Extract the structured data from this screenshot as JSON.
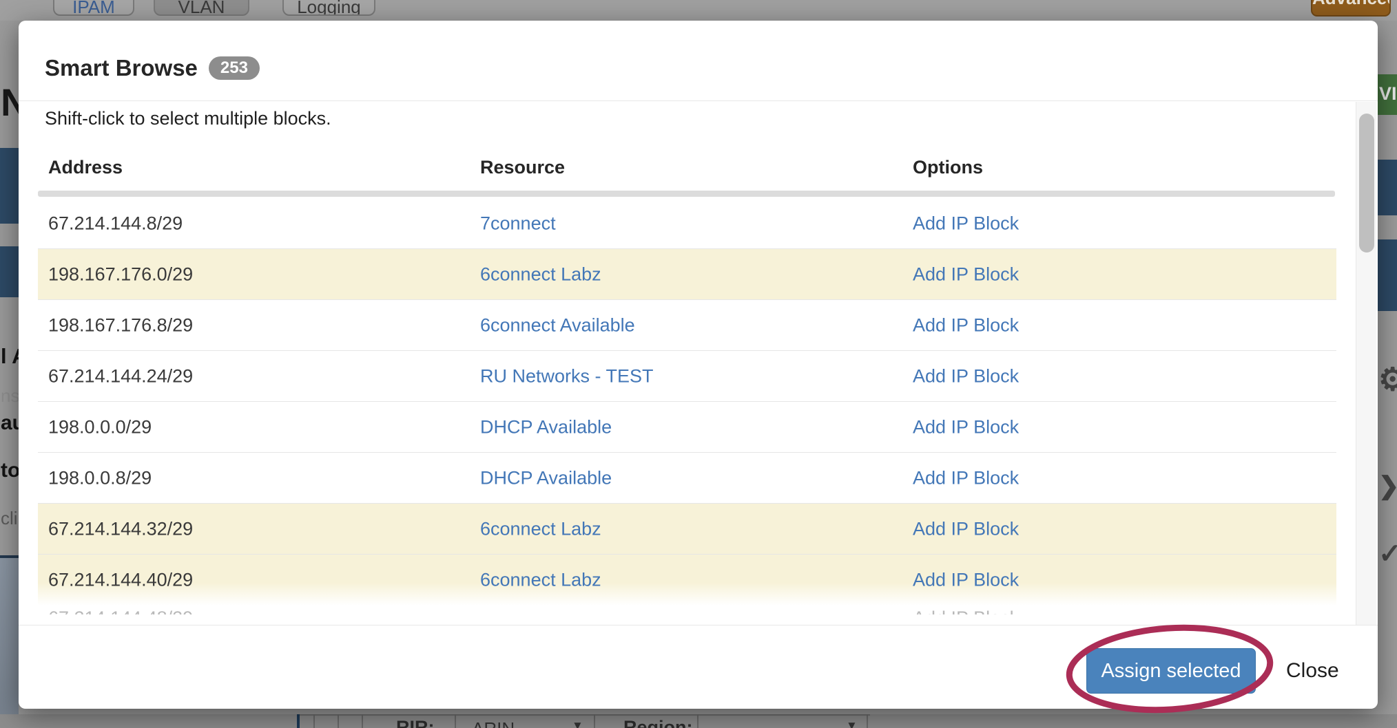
{
  "overlay_page": {
    "top_tabs": [
      {
        "label": "IPAM"
      },
      {
        "label": "VLAN"
      },
      {
        "label": "Logging"
      }
    ],
    "top_right_button_label": "Advanced",
    "left_edge_fragments": {
      "f1": "N",
      "f2": "l A",
      "f3": "ns",
      "f4": "au",
      "f5": "to",
      "f6": "cli"
    },
    "right_edge": {
      "green_button_label": "VI",
      "gear_glyph": "⚙",
      "chevron_glyph": "❯",
      "check_glyph": "✓"
    },
    "bottom_filter_row": {
      "rir_label": "RIR:",
      "rir_value": "ARIN",
      "region_label": "Region:",
      "caret": "▼"
    }
  },
  "modal": {
    "title": "Smart Browse",
    "badge_count": "253",
    "hint": "Shift-click to select multiple blocks.",
    "table": {
      "columns": [
        "Address",
        "Resource",
        "Options"
      ],
      "rows": [
        {
          "address": "67.214.144.8/29",
          "resource": "7connect",
          "option": "Add IP Block",
          "highlighted": false
        },
        {
          "address": "198.167.176.0/29",
          "resource": "6connect Labz",
          "option": "Add IP Block",
          "highlighted": true
        },
        {
          "address": "198.167.176.8/29",
          "resource": "6connect Available",
          "option": "Add IP Block",
          "highlighted": false
        },
        {
          "address": "67.214.144.24/29",
          "resource": "RU Networks - TEST",
          "option": "Add IP Block",
          "highlighted": false
        },
        {
          "address": "198.0.0.0/29",
          "resource": "DHCP Available",
          "option": "Add IP Block",
          "highlighted": false
        },
        {
          "address": "198.0.0.8/29",
          "resource": "DHCP Available",
          "option": "Add IP Block",
          "highlighted": false
        },
        {
          "address": "67.214.144.32/29",
          "resource": "6connect Labz",
          "option": "Add IP Block",
          "highlighted": true
        },
        {
          "address": "67.214.144.40/29",
          "resource": "6connect Labz",
          "option": "Add IP Block",
          "highlighted": true,
          "fade": true
        }
      ],
      "partial_row": {
        "address": "67.214.144.48/29",
        "option": "Add IP Block"
      }
    },
    "footer": {
      "assign_label": "Assign selected",
      "close_label": "Close"
    }
  },
  "colors": {
    "link_blue": "#4377b7",
    "assign_button_blue": "#4a83bc",
    "row_highlight_yellow": "#f7f2d8",
    "annotation_ellipse": "#ab2d56",
    "badge_gray": "#8d8d8d",
    "navy_band": "#2d4a66",
    "green_button": "#41703c",
    "orange_button": "#8f5c1c"
  }
}
